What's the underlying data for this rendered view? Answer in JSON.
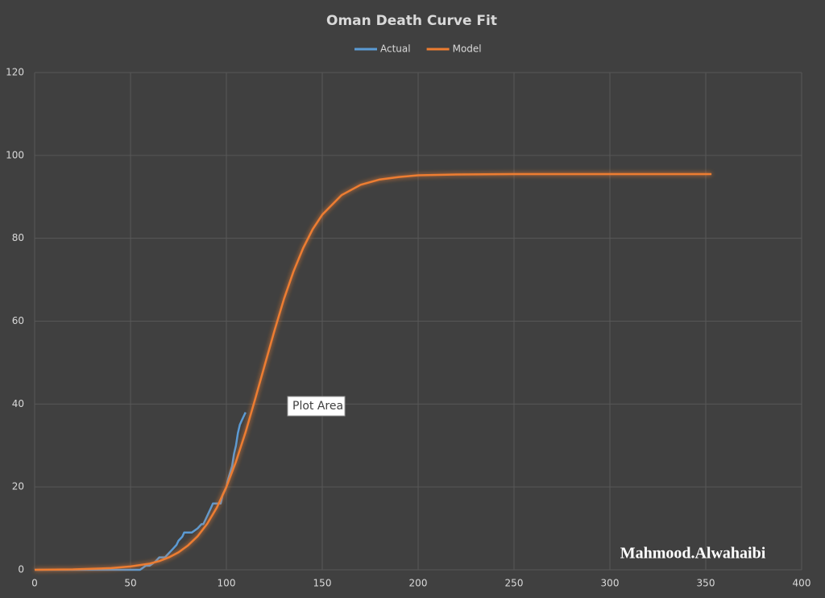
{
  "chart_data": {
    "type": "line",
    "title": "Oman Death Curve Fit",
    "annotation": "Plot Area",
    "watermark": "Mahmood.Alwahaibi",
    "xlim": [
      0,
      400
    ],
    "xticks": [
      0,
      50,
      100,
      150,
      200,
      250,
      300,
      350,
      400
    ],
    "ylim": [
      0,
      120
    ],
    "yticks": [
      0,
      20,
      40,
      60,
      80,
      100,
      120
    ],
    "grid": true,
    "legend": "top",
    "series": [
      {
        "name": "Actual",
        "color": "#5b9bd5",
        "x": [
          0,
          55,
          58,
          60,
          63,
          65,
          68,
          70,
          72,
          74,
          75,
          77,
          78,
          82,
          85,
          87,
          88,
          90,
          92,
          93,
          97,
          98,
          100,
          101,
          103,
          104,
          105,
          106,
          107,
          108,
          110
        ],
        "values": [
          0,
          0,
          1,
          1,
          2,
          3,
          3,
          4,
          5,
          6,
          7,
          8,
          9,
          9,
          10,
          11,
          11,
          13,
          15,
          16,
          16,
          18,
          20,
          22,
          25,
          28,
          30,
          33,
          35,
          36,
          38
        ]
      },
      {
        "name": "Model",
        "color": "#ed7d31",
        "x": [
          0,
          20,
          40,
          50,
          60,
          65,
          70,
          75,
          80,
          85,
          90,
          95,
          100,
          105,
          110,
          115,
          120,
          125,
          130,
          135,
          140,
          145,
          150,
          160,
          170,
          180,
          190,
          200,
          220,
          250,
          300,
          353
        ],
        "values": [
          0,
          0.1,
          0.4,
          0.8,
          1.5,
          2.1,
          3.0,
          4.2,
          5.9,
          8.1,
          11.1,
          15.0,
          20.0,
          26.1,
          33.2,
          41.2,
          49.4,
          57.6,
          65.3,
          72.0,
          77.6,
          82.2,
          85.7,
          90.4,
          92.9,
          94.2,
          94.8,
          95.2,
          95.4,
          95.5,
          95.5,
          95.5
        ]
      }
    ]
  }
}
